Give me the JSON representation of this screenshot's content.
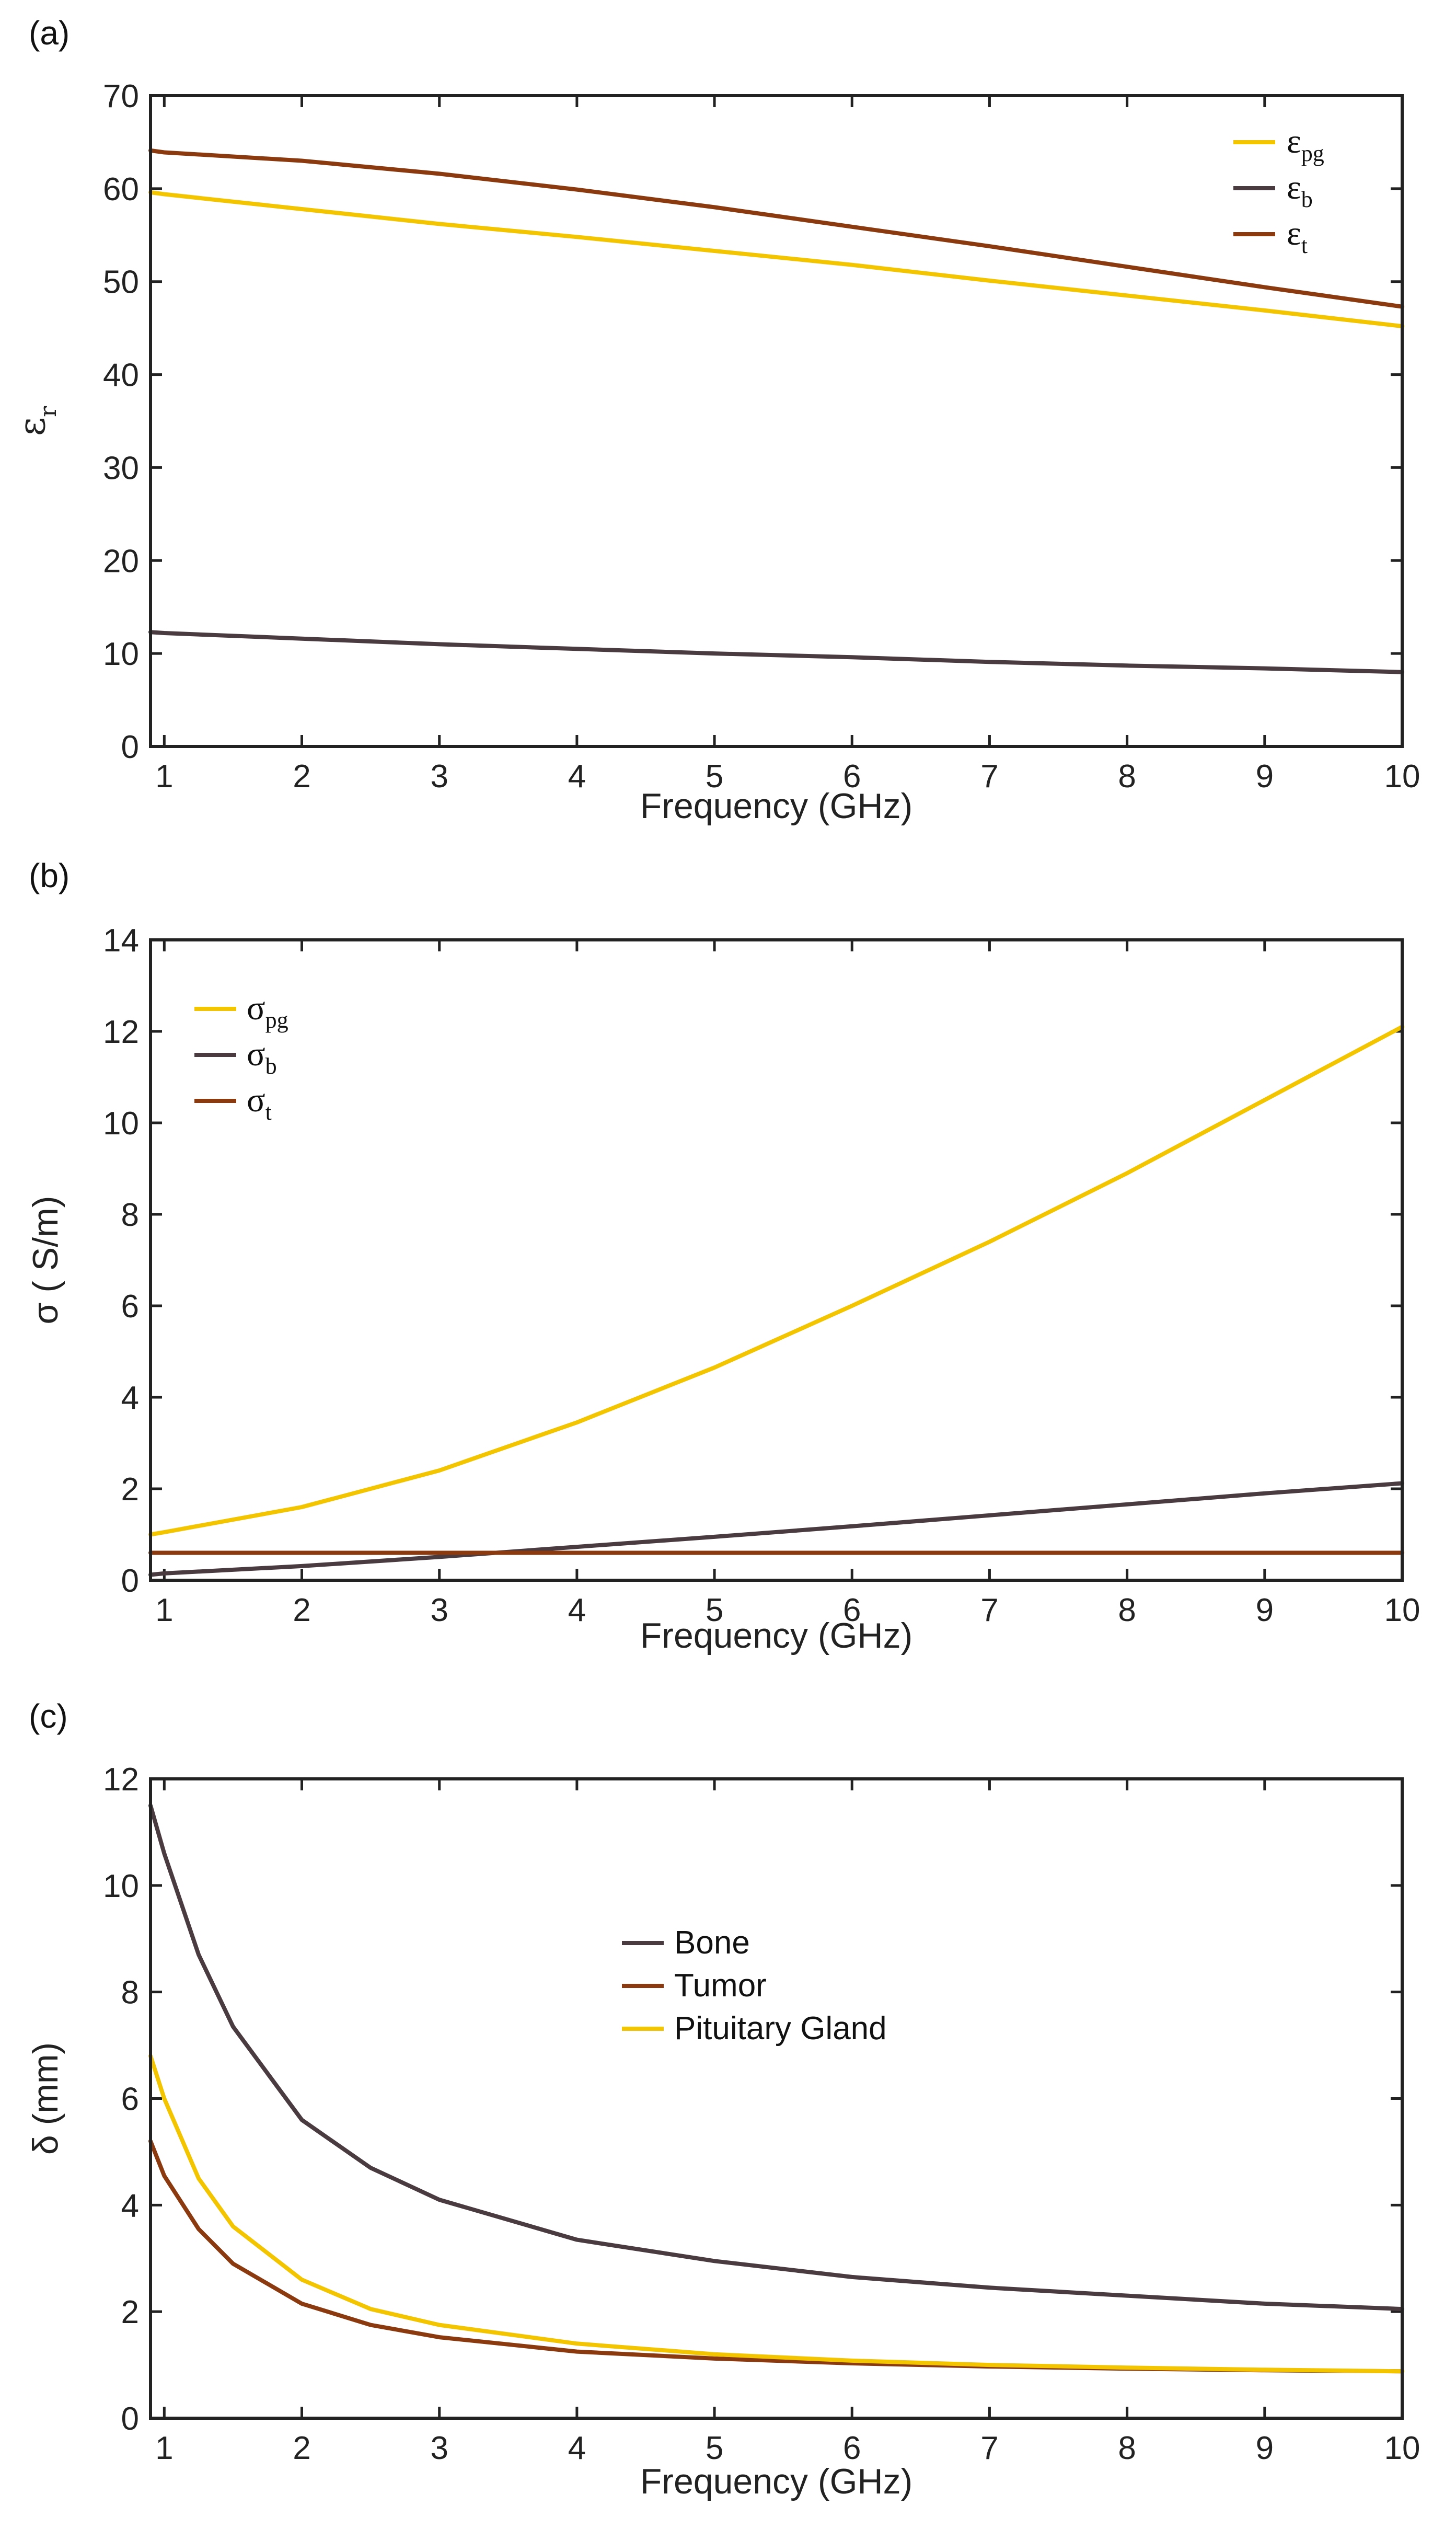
{
  "colors": {
    "pituitary": "#F2C500",
    "bone": "#4A3B40",
    "tumor": "#8B3A0F",
    "axis": "#222222"
  },
  "chart_data": [
    {
      "panel_label": "(a)",
      "type": "line",
      "xlabel": "Frequency (GHz)",
      "ylabel": {
        "main": "ε",
        "sub": "r"
      },
      "xlim": [
        0.9,
        10
      ],
      "ylim": [
        0,
        70
      ],
      "xticks": [
        1,
        2,
        3,
        4,
        5,
        6,
        7,
        8,
        9,
        10
      ],
      "yticks": [
        0,
        10,
        20,
        30,
        40,
        50,
        60,
        70
      ],
      "legend_position": "top-right",
      "series": [
        {
          "name": "ε",
          "sub": "pg",
          "color_key": "pituitary",
          "x": [
            0.9,
            1,
            2,
            3,
            4,
            5,
            6,
            7,
            8,
            9,
            10
          ],
          "y": [
            59.6,
            59.4,
            57.8,
            56.2,
            54.8,
            53.3,
            51.8,
            50.1,
            48.5,
            46.9,
            45.2
          ]
        },
        {
          "name": "ε",
          "sub": "b",
          "color_key": "bone",
          "x": [
            0.9,
            1,
            2,
            3,
            4,
            5,
            6,
            7,
            8,
            9,
            10
          ],
          "y": [
            12.3,
            12.2,
            11.6,
            11.0,
            10.5,
            10.0,
            9.6,
            9.1,
            8.7,
            8.4,
            8.0
          ]
        },
        {
          "name": "ε",
          "sub": "t",
          "color_key": "tumor",
          "x": [
            0.9,
            1,
            2,
            3,
            4,
            5,
            6,
            7,
            8,
            9,
            10
          ],
          "y": [
            64.1,
            63.9,
            63.0,
            61.6,
            59.9,
            58.0,
            55.9,
            53.8,
            51.6,
            49.4,
            47.3
          ]
        }
      ]
    },
    {
      "panel_label": "(b)",
      "type": "line",
      "xlabel": "Frequency (GHz)",
      "ylabel": {
        "main": "σ ( S/m)",
        "sub": ""
      },
      "xlim": [
        0.9,
        10
      ],
      "ylim": [
        0,
        14
      ],
      "xticks": [
        1,
        2,
        3,
        4,
        5,
        6,
        7,
        8,
        9,
        10
      ],
      "yticks": [
        0,
        2,
        4,
        6,
        8,
        10,
        12,
        14
      ],
      "legend_position": "top-left",
      "series": [
        {
          "name": "σ",
          "sub": "pg",
          "color_key": "pituitary",
          "x": [
            0.9,
            1,
            2,
            3,
            4,
            5,
            6,
            7,
            8,
            9,
            10
          ],
          "y": [
            1.0,
            1.05,
            1.6,
            2.4,
            3.45,
            4.65,
            6.0,
            7.4,
            8.9,
            10.5,
            12.1
          ]
        },
        {
          "name": "σ",
          "sub": "b",
          "color_key": "bone",
          "x": [
            0.9,
            1,
            2,
            3,
            4,
            5,
            6,
            7,
            8,
            9,
            10
          ],
          "y": [
            0.12,
            0.15,
            0.31,
            0.51,
            0.73,
            0.95,
            1.18,
            1.42,
            1.66,
            1.9,
            2.12
          ]
        },
        {
          "name": "σ",
          "sub": "t",
          "color_key": "tumor",
          "x": [
            0.9,
            10
          ],
          "y": [
            0.6,
            0.6
          ]
        }
      ]
    },
    {
      "panel_label": "(c)",
      "type": "line",
      "xlabel": "Frequency (GHz)",
      "ylabel": {
        "main": "δ (mm)",
        "sub": ""
      },
      "xlim": [
        0.9,
        10
      ],
      "ylim": [
        0,
        12
      ],
      "xticks": [
        1,
        2,
        3,
        4,
        5,
        6,
        7,
        8,
        9,
        10
      ],
      "yticks": [
        0,
        2,
        4,
        6,
        8,
        10,
        12
      ],
      "legend_position": "upper-center",
      "series": [
        {
          "name": "Bone",
          "sub": "",
          "color_key": "bone",
          "x": [
            0.9,
            1,
            1.25,
            1.5,
            2,
            2.5,
            3,
            4,
            5,
            6,
            7,
            8,
            9,
            10
          ],
          "y": [
            11.5,
            10.6,
            8.7,
            7.35,
            5.6,
            4.7,
            4.1,
            3.35,
            2.95,
            2.65,
            2.45,
            2.3,
            2.15,
            2.05
          ]
        },
        {
          "name": "Tumor",
          "sub": "",
          "color_key": "tumor",
          "x": [
            0.9,
            1,
            1.25,
            1.5,
            2,
            2.5,
            3,
            4,
            5,
            6,
            7,
            8,
            9,
            10
          ],
          "y": [
            5.2,
            4.55,
            3.55,
            2.9,
            2.15,
            1.75,
            1.52,
            1.25,
            1.12,
            1.03,
            0.97,
            0.93,
            0.9,
            0.88
          ]
        },
        {
          "name": "Pituitary Gland",
          "sub": "",
          "color_key": "pituitary",
          "x": [
            0.9,
            1,
            1.25,
            1.5,
            2,
            2.5,
            3,
            4,
            5,
            6,
            7,
            8,
            9,
            10
          ],
          "y": [
            6.8,
            6.0,
            4.5,
            3.6,
            2.6,
            2.05,
            1.75,
            1.4,
            1.2,
            1.08,
            1.0,
            0.95,
            0.91,
            0.88
          ]
        }
      ]
    }
  ]
}
